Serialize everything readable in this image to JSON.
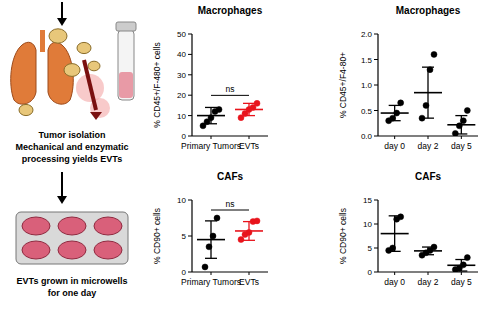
{
  "diagram": {
    "steps": [
      {
        "lines": [
          "Tumor isolation",
          "Mechanical and enzymatic",
          "processing yields EVTs"
        ]
      },
      {
        "lines": [
          "EVTs grown in microwells",
          "for one day"
        ]
      }
    ]
  },
  "chart_data": [
    {
      "type": "dot",
      "title": "Macrophages",
      "y_label": "% CD45+/F-480+ cells",
      "categories": [
        "Primary Tumors",
        "EVTs"
      ],
      "values": [
        [
          5,
          7,
          9,
          12,
          13
        ],
        [
          9,
          11,
          13,
          14,
          16
        ]
      ],
      "means": [
        10,
        13
      ],
      "errors": [
        4,
        3
      ],
      "colors": [
        "#000000",
        "#e8141c"
      ],
      "ylim": [
        0,
        50
      ],
      "yticks": [
        0,
        10,
        20,
        30,
        40,
        50
      ],
      "annotation": "ns"
    },
    {
      "type": "dot",
      "title": "Macrophages",
      "y_label": "% CD45+/F4-80+",
      "categories": [
        "day 0",
        "day 2",
        "day 5"
      ],
      "values": [
        [
          0.3,
          0.35,
          0.45,
          0.65
        ],
        [
          0.35,
          0.6,
          1.3,
          1.6
        ],
        [
          0.05,
          0.2,
          0.3,
          0.5
        ]
      ],
      "means": [
        0.45,
        0.85,
        0.22
      ],
      "errors": [
        0.15,
        0.5,
        0.18
      ],
      "colors": [
        "#000000",
        "#000000",
        "#000000"
      ],
      "ylim": [
        0,
        2
      ],
      "yticks": [
        {
          "value": 0,
          "label": "0.0"
        },
        {
          "value": 0.5,
          "label": "0.5"
        },
        {
          "value": 1,
          "label": "1.0"
        },
        {
          "value": 1.5,
          "label": "1.5"
        },
        {
          "value": 2,
          "label": "2.0"
        }
      ]
    },
    {
      "type": "dot",
      "title": "CAFs",
      "y_label": "% CD90+ cells",
      "categories": [
        "Primary Tumors",
        "EVTs"
      ],
      "values": [
        [
          0.7,
          3.5,
          5,
          7.5
        ],
        [
          4.5,
          5.2,
          5.5,
          7,
          7.1
        ]
      ],
      "means": [
        4.5,
        5.7
      ],
      "errors": [
        2.6,
        1.3
      ],
      "colors": [
        "#000000",
        "#e8141c"
      ],
      "ylim": [
        0,
        10
      ],
      "yticks": [
        0,
        5,
        10
      ],
      "annotation": "ns"
    },
    {
      "type": "dot",
      "title": "CAFs",
      "y_label": "% CD90+ cells",
      "categories": [
        "day 0",
        "day 2",
        "day 5"
      ],
      "values": [
        [
          4.5,
          5,
          11,
          11.5
        ],
        [
          3.5,
          4,
          4.5,
          5.2
        ],
        [
          0.5,
          0.8,
          1.5,
          3
        ]
      ],
      "means": [
        8,
        4.4,
        1.4
      ],
      "errors": [
        3.7,
        0.8,
        1.2
      ],
      "colors": [
        "#000000",
        "#000000",
        "#000000"
      ],
      "ylim": [
        0,
        15
      ],
      "yticks": [
        0,
        5,
        10,
        15
      ]
    }
  ]
}
